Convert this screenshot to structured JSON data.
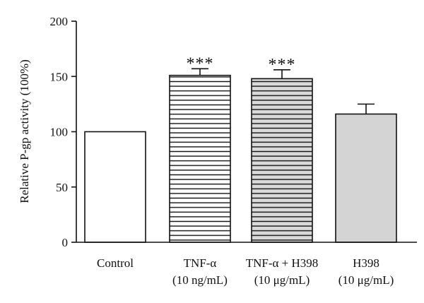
{
  "chart_data": {
    "type": "bar",
    "title": "",
    "xlabel": "",
    "ylabel": "Relative P-gp activity (100%)",
    "ylim": [
      0,
      200
    ],
    "yticks": [
      0,
      50,
      100,
      150,
      200
    ],
    "grid": false,
    "categories": [
      {
        "line1": "Control",
        "line2": ""
      },
      {
        "line1": "TNF-α",
        "line2": "(10 ng/mL)"
      },
      {
        "line1": "TNF-α + H398",
        "line2": "(10 μg/mL)"
      },
      {
        "line1": "H398",
        "line2": "(10 μg/mL)"
      }
    ],
    "values": [
      100,
      151,
      148,
      116
    ],
    "errors": [
      0,
      6,
      8,
      9
    ],
    "fills": [
      "#ffffff",
      "#ffffff",
      "#d9d9d9",
      "#d4d4d4"
    ],
    "patterns": [
      "none",
      "hlines",
      "hlines",
      "none"
    ],
    "significance": [
      "",
      "***",
      "***",
      ""
    ]
  }
}
